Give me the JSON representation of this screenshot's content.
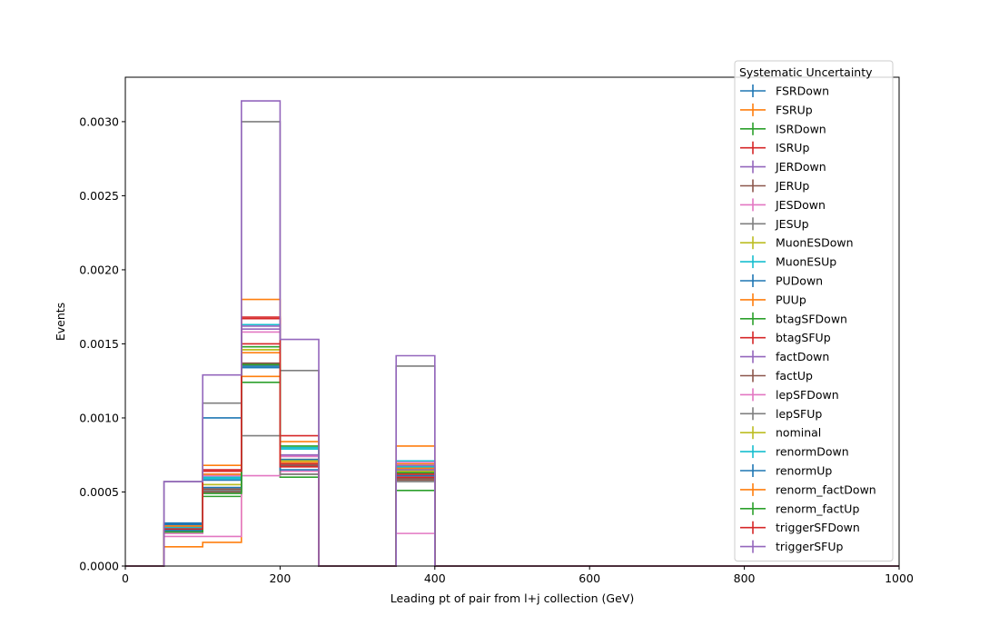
{
  "chart_data": {
    "type": "histogram-step",
    "xlabel": "Leading pt of pair from l+j collection (GeV)",
    "ylabel": "Events",
    "xlim": [
      0,
      1000
    ],
    "ylim": [
      0,
      0.0033
    ],
    "xticks": [
      0,
      200,
      400,
      600,
      800,
      1000
    ],
    "xtick_labels": [
      "0",
      "200",
      "400",
      "600",
      "800",
      "1000"
    ],
    "yticks": [
      0,
      0.0005,
      0.001,
      0.0015,
      0.002,
      0.0025,
      0.003
    ],
    "ytick_labels": [
      "0.0000",
      "0.0005",
      "0.0010",
      "0.0015",
      "0.0020",
      "0.0025",
      "0.0030"
    ],
    "grid": false,
    "legend_title": "Systematic Uncertainty",
    "legend_position": "upper-right",
    "bin_edges": [
      0,
      50,
      100,
      150,
      200,
      250,
      300,
      350,
      400,
      450,
      500,
      550,
      600,
      650,
      700,
      750,
      800,
      850,
      900,
      950,
      1000
    ],
    "series": [
      {
        "name": "FSRDown",
        "color": "#1f77b4",
        "values": [
          0,
          0.00029,
          0.00058,
          0.00135,
          0.00069,
          0,
          0,
          0.00066,
          0,
          0,
          0,
          0,
          0,
          0,
          0,
          0,
          0,
          0,
          0,
          0
        ]
      },
      {
        "name": "FSRUp",
        "color": "#ff7f0e",
        "values": [
          0,
          0.00013,
          0.00016,
          0.00128,
          0.00072,
          0,
          0,
          0.00069,
          0,
          0,
          0,
          0,
          0,
          0,
          0,
          0,
          0,
          0,
          0,
          0
        ]
      },
      {
        "name": "ISRDown",
        "color": "#2ca02c",
        "values": [
          0,
          0.00024,
          0.00047,
          0.00124,
          0.0006,
          0,
          0,
          0.00051,
          0,
          0,
          0,
          0,
          0,
          0,
          0,
          0,
          0,
          0,
          0,
          0
        ]
      },
      {
        "name": "ISRUp",
        "color": "#d62728",
        "values": [
          0,
          0.00026,
          0.00065,
          0.0015,
          0.00088,
          0,
          0,
          0.00063,
          0,
          0,
          0,
          0,
          0,
          0,
          0,
          0,
          0,
          0,
          0,
          0
        ]
      },
      {
        "name": "JERDown",
        "color": "#9467bd",
        "values": [
          0,
          0.00026,
          0.00062,
          0.0016,
          0.00075,
          0,
          0,
          0.00068,
          0,
          0,
          0,
          0,
          0,
          0,
          0,
          0,
          0,
          0,
          0,
          0
        ]
      },
      {
        "name": "JERUp",
        "color": "#8c564b",
        "values": [
          0,
          0.00025,
          0.00052,
          0.00137,
          0.00068,
          0,
          0,
          0.00059,
          0,
          0,
          0,
          0,
          0,
          0,
          0,
          0,
          0,
          0,
          0,
          0
        ]
      },
      {
        "name": "JESDown",
        "color": "#e377c2",
        "values": [
          0,
          0.0002,
          0.0002,
          0.00061,
          0.00064,
          0,
          0,
          0.00022,
          0,
          0,
          0,
          0,
          0,
          0,
          0,
          0,
          0,
          0,
          0,
          0
        ]
      },
      {
        "name": "JESUp",
        "color": "#7f7f7f",
        "values": [
          0,
          0.00057,
          0.0011,
          0.003,
          0.00132,
          0,
          0,
          0.00135,
          0,
          0,
          0,
          0,
          0,
          0,
          0,
          0,
          0,
          0,
          0,
          0
        ]
      },
      {
        "name": "MuonESDown",
        "color": "#bcbd22",
        "values": [
          0,
          0.00025,
          0.00055,
          0.00146,
          0.00071,
          0,
          0,
          0.00064,
          0,
          0,
          0,
          0,
          0,
          0,
          0,
          0,
          0,
          0,
          0,
          0
        ]
      },
      {
        "name": "MuonESUp",
        "color": "#17becf",
        "values": [
          0,
          0.00027,
          0.0006,
          0.00134,
          0.0008,
          0,
          0,
          0.00071,
          0,
          0,
          0,
          0,
          0,
          0,
          0,
          0,
          0,
          0,
          0,
          0
        ]
      },
      {
        "name": "PUDown",
        "color": "#1f77b4",
        "values": [
          0,
          0.00028,
          0.001,
          0.00163,
          0.00072,
          0,
          0,
          0.00065,
          0,
          0,
          0,
          0,
          0,
          0,
          0,
          0,
          0,
          0,
          0,
          0
        ]
      },
      {
        "name": "PUUp",
        "color": "#ff7f0e",
        "values": [
          0,
          0.00024,
          0.00068,
          0.0018,
          0.00084,
          0,
          0,
          0.00081,
          0,
          0,
          0,
          0,
          0,
          0,
          0,
          0,
          0,
          0,
          0,
          0
        ]
      },
      {
        "name": "btagSFDown",
        "color": "#2ca02c",
        "values": [
          0,
          0.00023,
          0.0005,
          0.00148,
          0.00071,
          0,
          0,
          0.00062,
          0,
          0,
          0,
          0,
          0,
          0,
          0,
          0,
          0,
          0,
          0,
          0
        ]
      },
      {
        "name": "btagSFUp",
        "color": "#d62728",
        "values": [
          0,
          0.00026,
          0.00064,
          0.00167,
          0.00069,
          0,
          0,
          0.0006,
          0,
          0,
          0,
          0,
          0,
          0,
          0,
          0,
          0,
          0,
          0,
          0
        ]
      },
      {
        "name": "factDown",
        "color": "#9467bd",
        "values": [
          0,
          0.00025,
          0.0005,
          0.00162,
          0.00074,
          0,
          0,
          0.00065,
          0,
          0,
          0,
          0,
          0,
          0,
          0,
          0,
          0,
          0,
          0,
          0
        ]
      },
      {
        "name": "factUp",
        "color": "#8c564b",
        "values": [
          0,
          0.00024,
          0.0005,
          0.00136,
          0.00062,
          0,
          0,
          0.00058,
          0,
          0,
          0,
          0,
          0,
          0,
          0,
          0,
          0,
          0,
          0,
          0
        ]
      },
      {
        "name": "lepSFDown",
        "color": "#e377c2",
        "values": [
          0,
          0.00022,
          0.00061,
          0.00158,
          0.00074,
          0,
          0,
          0.0007,
          0,
          0,
          0,
          0,
          0,
          0,
          0,
          0,
          0,
          0,
          0,
          0
        ]
      },
      {
        "name": "lepSFUp",
        "color": "#7f7f7f",
        "values": [
          0,
          0.00025,
          0.00051,
          0.00088,
          0.00062,
          0,
          0,
          0.00057,
          0,
          0,
          0,
          0,
          0,
          0,
          0,
          0,
          0,
          0,
          0,
          0
        ]
      },
      {
        "name": "nominal",
        "color": "#bcbd22",
        "values": [
          0,
          0.00025,
          0.00055,
          0.00146,
          0.00071,
          0,
          0,
          0.00064,
          0,
          0,
          0,
          0,
          0,
          0,
          0,
          0,
          0,
          0,
          0,
          0
        ]
      },
      {
        "name": "renormDown",
        "color": "#17becf",
        "values": [
          0,
          0.00026,
          0.00059,
          0.00163,
          0.00079,
          0,
          0,
          0.00067,
          0,
          0,
          0,
          0,
          0,
          0,
          0,
          0,
          0,
          0,
          0,
          0
        ]
      },
      {
        "name": "renormUp",
        "color": "#1f77b4",
        "values": [
          0,
          0.00024,
          0.00053,
          0.00134,
          0.00065,
          0,
          0,
          0.00061,
          0,
          0,
          0,
          0,
          0,
          0,
          0,
          0,
          0,
          0,
          0,
          0
        ]
      },
      {
        "name": "renorm_factDown",
        "color": "#ff7f0e",
        "values": [
          0,
          0.00027,
          0.00062,
          0.00144,
          0.0007,
          0,
          0,
          0.00066,
          0,
          0,
          0,
          0,
          0,
          0,
          0,
          0,
          0,
          0,
          0,
          0
        ]
      },
      {
        "name": "renorm_factUp",
        "color": "#2ca02c",
        "values": [
          0,
          0.00023,
          0.00049,
          0.00136,
          0.00081,
          0,
          0,
          0.00063,
          0,
          0,
          0,
          0,
          0,
          0,
          0,
          0,
          0,
          0,
          0,
          0
        ]
      },
      {
        "name": "triggerSFDown",
        "color": "#d62728",
        "values": [
          0,
          0.00025,
          0.00064,
          0.00168,
          0.00067,
          0,
          0,
          0.00062,
          0,
          0,
          0,
          0,
          0,
          0,
          0,
          0,
          0,
          0,
          0,
          0
        ]
      },
      {
        "name": "triggerSFUp",
        "color": "#9467bd",
        "values": [
          0,
          0.00057,
          0.00129,
          0.00314,
          0.00153,
          0,
          0,
          0.00142,
          0,
          0,
          0,
          0,
          0,
          0,
          0,
          0,
          0,
          0,
          0,
          0
        ]
      }
    ]
  }
}
